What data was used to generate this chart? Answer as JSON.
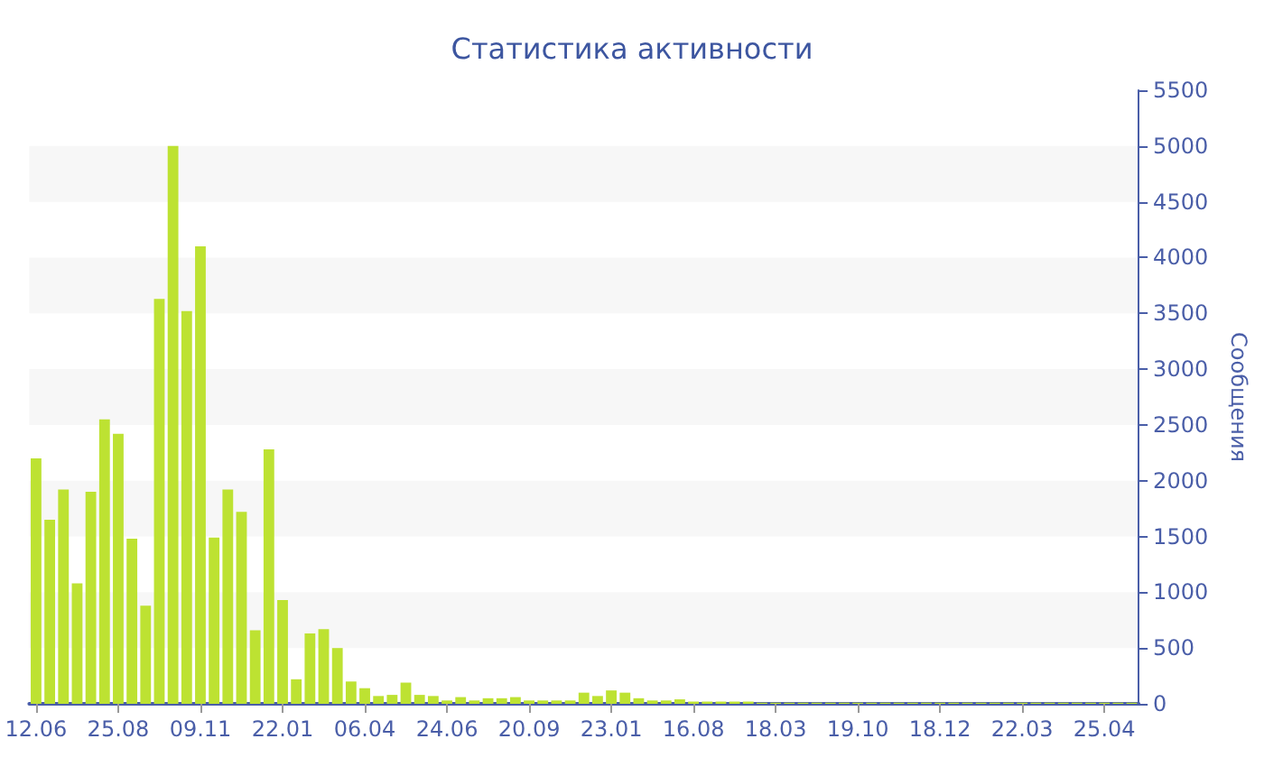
{
  "chart_data": {
    "type": "bar",
    "title": "Статистика активности",
    "ylabel": "Сообщения",
    "categories": [
      "12.06",
      null,
      null,
      null,
      null,
      null,
      "25.08",
      null,
      null,
      null,
      null,
      null,
      "09.11",
      null,
      null,
      null,
      null,
      null,
      "22.01",
      null,
      null,
      null,
      null,
      null,
      "06.04",
      null,
      null,
      null,
      null,
      null,
      "24.06",
      null,
      null,
      null,
      null,
      null,
      "20.09",
      null,
      null,
      null,
      null,
      null,
      "23.01",
      null,
      null,
      null,
      null,
      null,
      "16.08",
      null,
      null,
      null,
      null,
      null,
      "18.03",
      null,
      null,
      null,
      null,
      null,
      "19.10",
      null,
      null,
      null,
      null,
      null,
      "18.12",
      null,
      null,
      null,
      null,
      null,
      "22.03",
      null,
      null,
      null,
      null,
      null,
      "25.04",
      null,
      null
    ],
    "values": [
      2200,
      1650,
      1920,
      1080,
      1900,
      2550,
      2420,
      1480,
      880,
      3630,
      5000,
      3520,
      4100,
      1490,
      1920,
      1720,
      660,
      2280,
      930,
      220,
      630,
      670,
      500,
      200,
      140,
      70,
      80,
      190,
      80,
      70,
      30,
      60,
      30,
      50,
      50,
      60,
      30,
      30,
      30,
      30,
      100,
      70,
      120,
      100,
      50,
      30,
      30,
      40,
      20,
      20,
      20,
      20,
      20,
      10,
      10,
      10,
      10,
      10,
      10,
      10,
      10,
      10,
      10,
      10,
      10,
      10,
      10,
      10,
      10,
      10,
      10,
      10,
      10,
      10,
      10,
      10,
      10,
      10,
      10,
      10,
      10
    ],
    "color": "#bde232",
    "ylim": [
      0,
      5500
    ],
    "yticks": [
      0,
      500,
      1000,
      1500,
      2000,
      2500,
      3000,
      3500,
      4000,
      4500,
      5000,
      5500
    ],
    "bands": [
      {
        "axis": "y",
        "from": 500,
        "to": 1000,
        "color": "#f7f7f7"
      },
      {
        "axis": "y",
        "from": 1500,
        "to": 2000,
        "color": "#f7f7f7"
      },
      {
        "axis": "y",
        "from": 2500,
        "to": 3000,
        "color": "#f7f7f7"
      },
      {
        "axis": "y",
        "from": 3500,
        "to": 4000,
        "color": "#f7f7f7"
      },
      {
        "axis": "y",
        "from": 4500,
        "to": 5000,
        "color": "#f7f7f7"
      }
    ]
  }
}
